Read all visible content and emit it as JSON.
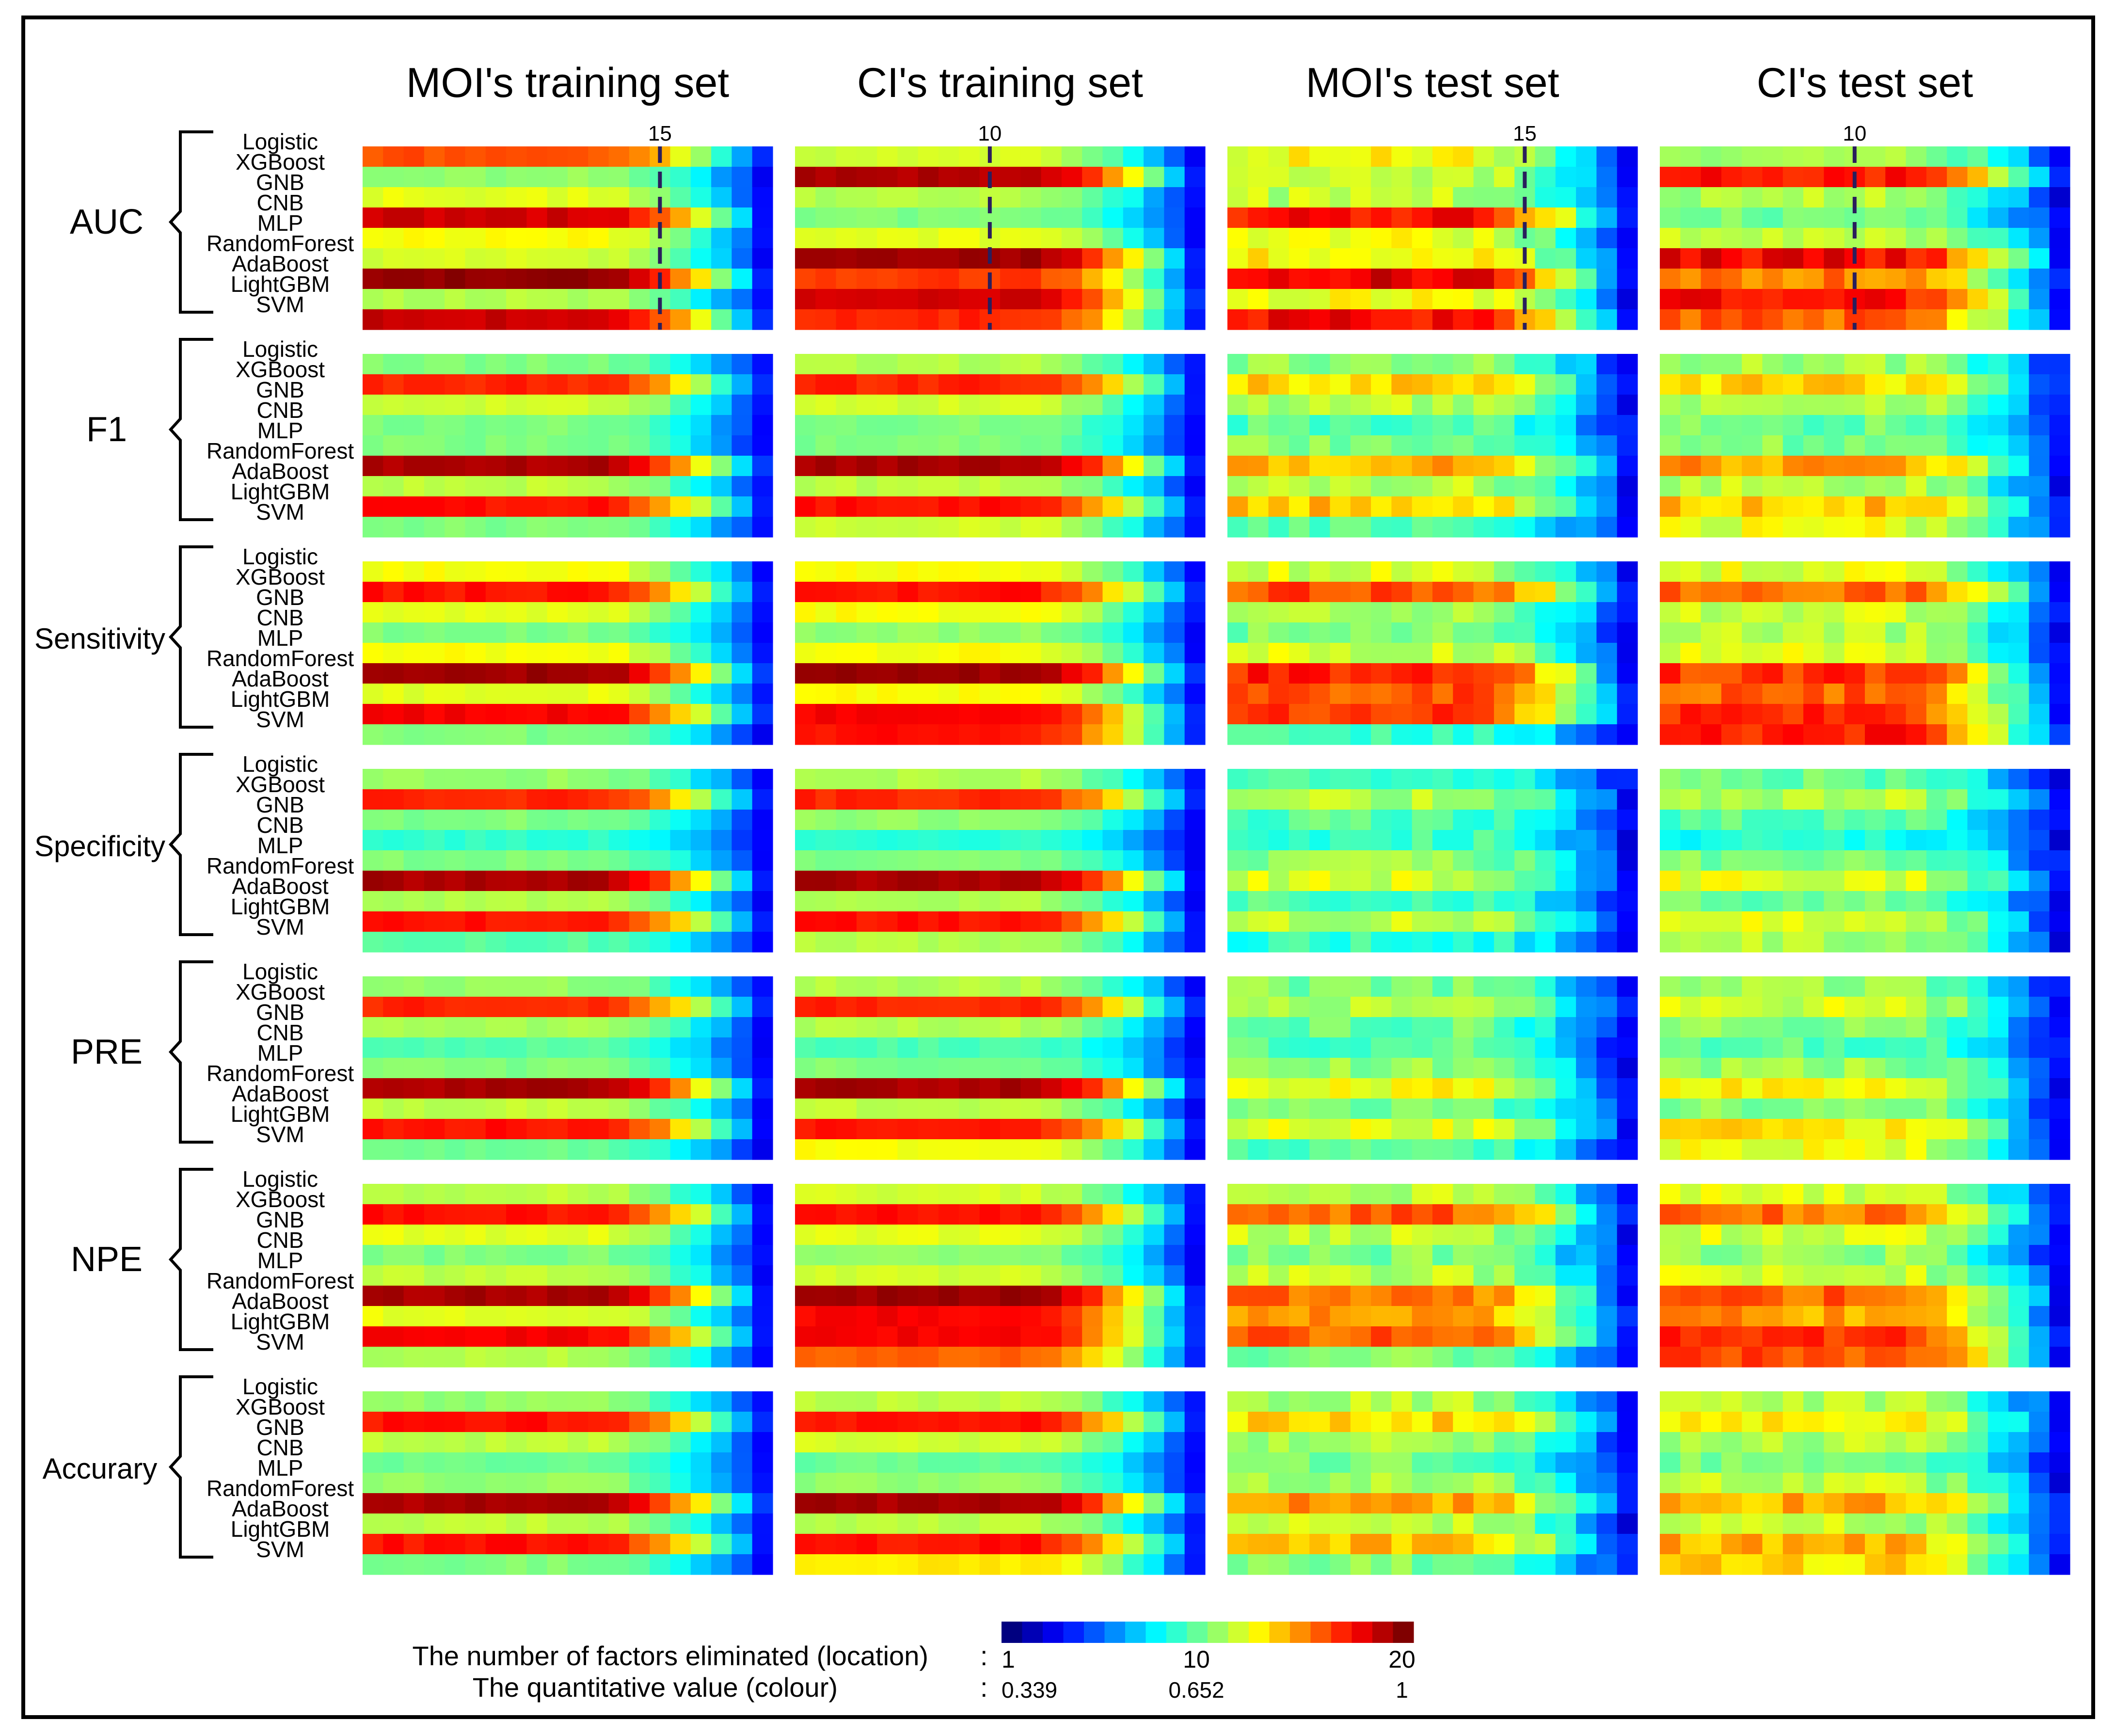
{
  "chart_data": {
    "type": "heatmap",
    "columns": [
      "MOI's training set",
      "CI's training set",
      "MOI's test set",
      "CI's test set"
    ],
    "metrics": [
      "AUC",
      "F1",
      "Sensitivity",
      "Specificity",
      "PRE",
      "NPE",
      "Accurary"
    ],
    "models": [
      "Logistic",
      "XGBoost",
      "GNB",
      "CNB",
      "MLP",
      "RandomForest",
      "AdaBoost",
      "LightGBM",
      "SVM"
    ],
    "n_factor_steps": 20,
    "cutoff_lines": [
      {
        "metric": "AUC",
        "column": "MOI's training set",
        "factors_eliminated": 15,
        "label": "15"
      },
      {
        "metric": "AUC",
        "column": "CI's training set",
        "factors_eliminated": 10,
        "label": "10"
      },
      {
        "metric": "AUC",
        "column": "MOI's test set",
        "factors_eliminated": 15,
        "label": "15"
      },
      {
        "metric": "AUC",
        "column": "CI's test set",
        "factors_eliminated": 10,
        "label": "10"
      }
    ],
    "profiles": {
      "AUC": {
        "MOI's training set": [
          0.8,
          0.52,
          0.6,
          0.92,
          0.62,
          0.58,
          0.98,
          0.55,
          0.93
        ],
        "CI's training set": [
          0.58,
          0.95,
          0.55,
          0.5,
          0.6,
          0.97,
          0.82,
          0.92,
          0.84
        ],
        "MOI's test set": [
          0.62,
          0.58,
          0.56,
          0.86,
          0.6,
          0.64,
          0.9,
          0.62,
          0.87
        ],
        "CI's test set": [
          0.56,
          0.85,
          0.55,
          0.5,
          0.58,
          0.88,
          0.75,
          0.86,
          0.78
        ]
      },
      "F1": {
        "MOI's training set": [
          0.5,
          0.84,
          0.58,
          0.5,
          0.5,
          0.96,
          0.56,
          0.86,
          0.5
        ],
        "CI's training set": [
          0.55,
          0.84,
          0.58,
          0.5,
          0.5,
          0.96,
          0.56,
          0.86,
          0.58
        ],
        "MOI's test set": [
          0.52,
          0.66,
          0.55,
          0.46,
          0.5,
          0.7,
          0.56,
          0.68,
          0.45
        ],
        "CI's test set": [
          0.54,
          0.66,
          0.56,
          0.48,
          0.5,
          0.72,
          0.56,
          0.68,
          0.6
        ]
      },
      "Sensitivity": {
        "MOI's training set": [
          0.62,
          0.86,
          0.6,
          0.5,
          0.62,
          0.97,
          0.6,
          0.88,
          0.5
        ],
        "CI's training set": [
          0.62,
          0.86,
          0.62,
          0.52,
          0.62,
          0.97,
          0.62,
          0.88,
          0.86
        ],
        "MOI's test set": [
          0.58,
          0.8,
          0.55,
          0.5,
          0.58,
          0.85,
          0.8,
          0.82,
          0.44
        ],
        "CI's test set": [
          0.6,
          0.78,
          0.58,
          0.55,
          0.6,
          0.82,
          0.78,
          0.82,
          0.85
        ]
      },
      "Specificity": {
        "MOI's training set": [
          0.52,
          0.84,
          0.5,
          0.42,
          0.5,
          0.96,
          0.55,
          0.86,
          0.46
        ],
        "CI's training set": [
          0.55,
          0.84,
          0.52,
          0.42,
          0.5,
          0.96,
          0.55,
          0.86,
          0.55
        ],
        "MOI's test set": [
          0.45,
          0.55,
          0.46,
          0.44,
          0.52,
          0.58,
          0.45,
          0.56,
          0.42
        ],
        "CI's test set": [
          0.48,
          0.56,
          0.46,
          0.4,
          0.5,
          0.6,
          0.48,
          0.6,
          0.55
        ]
      },
      "PRE": {
        "MOI's training set": [
          0.52,
          0.84,
          0.54,
          0.46,
          0.5,
          0.96,
          0.56,
          0.86,
          0.48
        ],
        "CI's training set": [
          0.55,
          0.84,
          0.55,
          0.45,
          0.5,
          0.96,
          0.56,
          0.86,
          0.62
        ],
        "MOI's test set": [
          0.5,
          0.56,
          0.48,
          0.46,
          0.52,
          0.62,
          0.5,
          0.6,
          0.46
        ],
        "CI's test set": [
          0.52,
          0.58,
          0.5,
          0.46,
          0.52,
          0.62,
          0.52,
          0.64,
          0.6
        ]
      },
      "NPE": {
        "MOI's training set": [
          0.56,
          0.86,
          0.6,
          0.5,
          0.56,
          0.96,
          0.6,
          0.88,
          0.55
        ],
        "CI's training set": [
          0.58,
          0.86,
          0.6,
          0.52,
          0.58,
          0.97,
          0.88,
          0.88,
          0.78
        ],
        "MOI's test set": [
          0.56,
          0.78,
          0.56,
          0.5,
          0.56,
          0.76,
          0.72,
          0.78,
          0.5
        ],
        "CI's test set": [
          0.58,
          0.76,
          0.58,
          0.52,
          0.58,
          0.78,
          0.72,
          0.82,
          0.8
        ]
      },
      "Accurary": {
        "MOI's training set": [
          0.52,
          0.86,
          0.56,
          0.48,
          0.52,
          0.96,
          0.56,
          0.86,
          0.5
        ],
        "CI's training set": [
          0.56,
          0.86,
          0.58,
          0.48,
          0.52,
          0.96,
          0.56,
          0.86,
          0.65
        ],
        "MOI's test set": [
          0.55,
          0.66,
          0.54,
          0.48,
          0.55,
          0.72,
          0.56,
          0.68,
          0.5
        ],
        "CI's test set": [
          0.56,
          0.64,
          0.55,
          0.5,
          0.56,
          0.7,
          0.56,
          0.7,
          0.66
        ]
      }
    },
    "colorbar": {
      "colormap": "jet",
      "steps": 20,
      "location_label": "The number of factors eliminated (location)",
      "colour_label": "The quantitative value (colour)",
      "location_ticks": [
        "1",
        "10",
        "20"
      ],
      "value_ticks": [
        "0.339",
        "0.652",
        "1"
      ],
      "separator": ":"
    }
  }
}
